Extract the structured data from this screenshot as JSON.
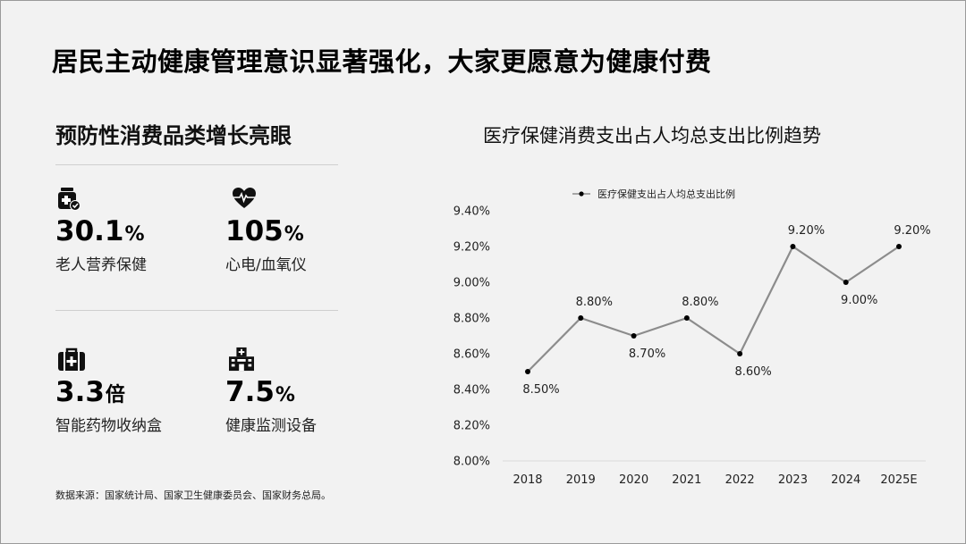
{
  "page": {
    "title": "居民主动健康管理意识显著强化，大家更愿意为健康付费",
    "source": "数据来源：国家统计局、国家卫生健康委员会、国家财务总局。"
  },
  "left": {
    "title": "预防性消费品类增长亮眼",
    "stats": [
      {
        "value": "30.1",
        "unit": "%",
        "label": "老人营养保健",
        "icon": "medicine-bottle-icon"
      },
      {
        "value": "105",
        "unit": "%",
        "label": "心电/血氧仪",
        "icon": "heartbeat-icon"
      },
      {
        "value": "3.3",
        "unit": "倍",
        "label": "智能药物收纳盒",
        "icon": "first-aid-kit-icon"
      },
      {
        "value": "7.5",
        "unit": "%",
        "label": "健康监测设备",
        "icon": "hospital-icon"
      }
    ]
  },
  "chart_title": "医疗保健消费支出占人均总支出比例趋势",
  "chart_data": {
    "type": "line",
    "title": "医疗保健消费支出占人均总支出比例趋势",
    "categories": [
      "2018",
      "2019",
      "2020",
      "2021",
      "2022",
      "2023",
      "2024",
      "2025E"
    ],
    "series": [
      {
        "name": "医疗保健支出占人均总支出比例",
        "values": [
          8.5,
          8.8,
          8.7,
          8.8,
          8.6,
          9.2,
          9.0,
          9.2
        ],
        "labels": [
          "8.50%",
          "8.80%",
          "8.70%",
          "8.80%",
          "8.60%",
          "9.20%",
          "9.00%",
          "9.20%"
        ]
      }
    ],
    "ylim": [
      8.0,
      9.4
    ],
    "yticks": [
      "8.00%",
      "8.20%",
      "8.40%",
      "8.60%",
      "8.80%",
      "9.00%",
      "9.20%",
      "9.40%"
    ],
    "legend": "top-center",
    "grid": false,
    "line_color": "#8c8c8c",
    "marker_color": "#000000"
  }
}
